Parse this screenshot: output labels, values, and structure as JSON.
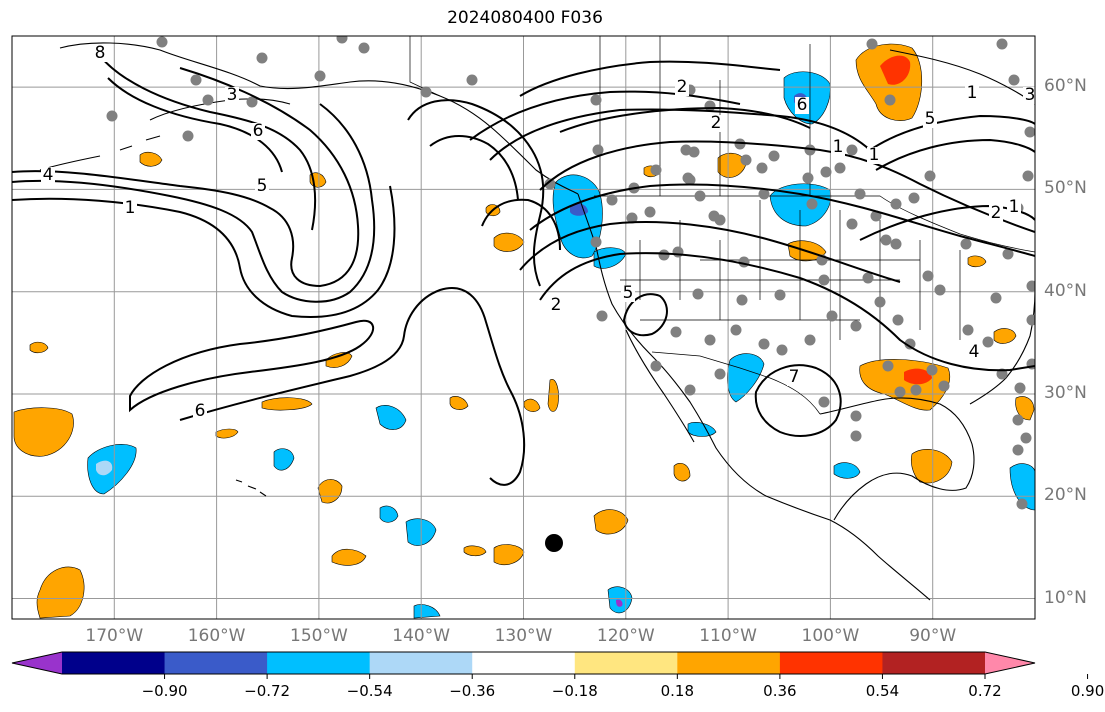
{
  "title": "2024080400 F036",
  "map": {
    "projection": "cylindrical",
    "lon_range": [
      -180,
      -80
    ],
    "lat_range": [
      8,
      65
    ],
    "grid": true,
    "lat_ticks": [
      {
        "value": 60,
        "label": "60°N"
      },
      {
        "value": 50,
        "label": "50°N"
      },
      {
        "value": 40,
        "label": "40°N"
      },
      {
        "value": 30,
        "label": "30°N"
      },
      {
        "value": 20,
        "label": "20°N"
      },
      {
        "value": 10,
        "label": "10°N"
      }
    ],
    "lon_ticks": [
      {
        "value": -170,
        "label": "170°W"
      },
      {
        "value": -160,
        "label": "160°W"
      },
      {
        "value": -150,
        "label": "150°W"
      },
      {
        "value": -140,
        "label": "140°W"
      },
      {
        "value": -130,
        "label": "130°W"
      },
      {
        "value": -120,
        "label": "120°W"
      },
      {
        "value": -110,
        "label": "110°W"
      },
      {
        "value": -100,
        "label": "100°W"
      },
      {
        "value": -90,
        "label": "90°W"
      }
    ],
    "contour_labels": [
      "4",
      "1",
      "5",
      "6",
      "3",
      "2",
      "5",
      "6",
      "4",
      "7",
      "2",
      "2",
      "1",
      "1",
      "1",
      "2",
      "1",
      "6",
      "5",
      "3",
      "8"
    ],
    "station_color": "#808080",
    "marker_color": "#000000"
  },
  "colorbar": {
    "orientation": "horizontal",
    "extend": "both",
    "colors": [
      "#9933cc",
      "#00008b",
      "#3a5bc9",
      "#00bfff",
      "#add8f7",
      "#ffffff",
      "#ffe680",
      "#ffa500",
      "#ff3300",
      "#b22222",
      "#ff88aa"
    ],
    "ticks": [
      "−0.90",
      "−0.72",
      "−0.54",
      "−0.36",
      "−0.18",
      "0.18",
      "0.36",
      "0.54",
      "0.72",
      "0.90"
    ]
  }
}
